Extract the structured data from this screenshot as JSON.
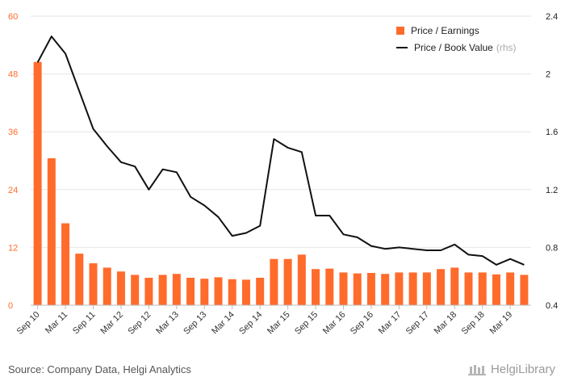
{
  "chart_data": {
    "type": "bar",
    "categories": [
      "Sep 10",
      "Dec 10",
      "Mar 11",
      "Jun 11",
      "Sep 11",
      "Dec 11",
      "Mar 12",
      "Jun 12",
      "Sep 12",
      "Dec 12",
      "Mar 13",
      "Jun 13",
      "Sep 13",
      "Dec 13",
      "Mar 14",
      "Jun 14",
      "Sep 14",
      "Dec 14",
      "Mar 15",
      "Jun 15",
      "Sep 15",
      "Dec 15",
      "Mar 16",
      "Jun 16",
      "Sep 16",
      "Dec 16",
      "Mar 17",
      "Jun 17",
      "Sep 17",
      "Dec 17",
      "Mar 18",
      "Jun 18",
      "Sep 18",
      "Dec 18",
      "Mar 19",
      "Jun 19"
    ],
    "tick_labels": [
      "Sep 10",
      "Mar 11",
      "Sep 11",
      "Mar 12",
      "Sep 12",
      "Mar 13",
      "Sep 13",
      "Mar 14",
      "Sep 14",
      "Mar 15",
      "Sep 15",
      "Mar 16",
      "Sep 16",
      "Mar 17",
      "Sep 17",
      "Mar 18",
      "Sep 18",
      "Mar 19"
    ],
    "series": [
      {
        "name": "Price / Earnings",
        "axis": "left",
        "kind": "bar",
        "color": "#ff6b2b",
        "values": [
          50.5,
          30.5,
          17,
          10.7,
          8.7,
          7.8,
          7,
          6.3,
          5.7,
          6.3,
          6.5,
          5.7,
          5.5,
          5.8,
          5.4,
          5.3,
          5.7,
          9.6,
          9.6,
          10.5,
          7.5,
          7.6,
          6.8,
          6.6,
          6.7,
          6.5,
          6.8,
          6.8,
          6.8,
          7.5,
          7.8,
          6.8,
          6.8,
          6.4,
          6.8,
          6.3
        ]
      },
      {
        "name": "Price / Book Value",
        "name_suffix": "(rhs)",
        "axis": "right",
        "kind": "line",
        "color": "#111111",
        "values": [
          2.08,
          2.26,
          2.14,
          1.88,
          1.62,
          1.5,
          1.39,
          1.36,
          1.2,
          1.34,
          1.32,
          1.15,
          1.09,
          1.01,
          0.88,
          0.9,
          0.95,
          1.55,
          1.49,
          1.46,
          1.02,
          1.02,
          0.89,
          0.87,
          0.81,
          0.79,
          0.8,
          0.79,
          0.78,
          0.78,
          0.82,
          0.75,
          0.74,
          0.68,
          0.72,
          0.68
        ]
      }
    ],
    "y_left": {
      "min": 0,
      "max": 60,
      "ticks": [
        "0",
        "12",
        "24",
        "36",
        "48",
        "60"
      ]
    },
    "y_right": {
      "min": 0.4,
      "max": 2.4,
      "ticks": [
        "0.4",
        "0.8",
        "1.2",
        "1.6",
        "2",
        "2.4"
      ]
    },
    "colors": {
      "left_axis_text": "#ff6b2b",
      "right_axis_text": "#222222",
      "grid": "#e6e6e6"
    },
    "grid": true,
    "legend_position": "top-right"
  },
  "footer": {
    "source": "Source: Company Data, Helgi Analytics",
    "logo_text": "HelgiLibrary"
  }
}
